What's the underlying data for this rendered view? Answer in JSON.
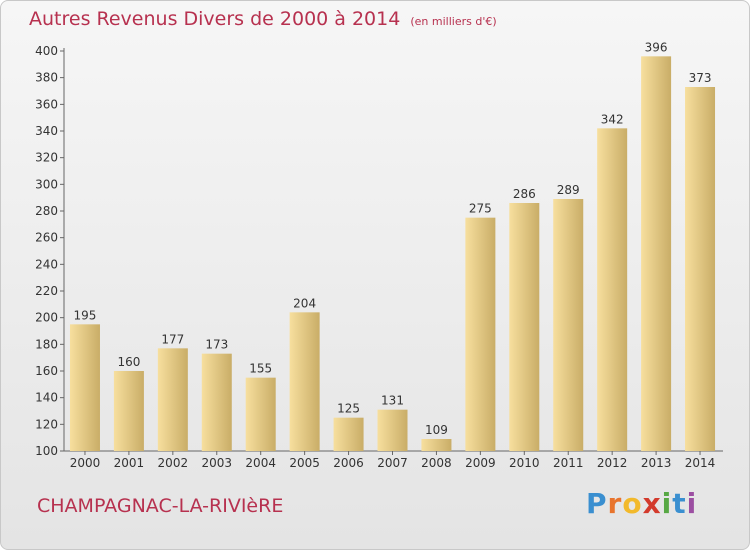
{
  "header": {
    "title": "Autres Revenus Divers de 2000 à 2014",
    "unit": "(en milliers d'€)"
  },
  "footer": {
    "commune": "CHAMPAGNAC-LA-RIVIèRE"
  },
  "logo": {
    "letters": [
      "P",
      "r",
      "o",
      "x",
      "i",
      "t",
      "i"
    ],
    "colors": [
      "#3a8fd0",
      "#e8742d",
      "#f2b92b",
      "#d33a2c",
      "#57a844",
      "#3a8fd0",
      "#9c4fa2"
    ]
  },
  "colors": {
    "title": "#b7314f",
    "bar_light": "#f7df9e",
    "bar_dark": "#c9ad67"
  },
  "chart_data": {
    "type": "bar",
    "title": "Autres Revenus Divers de 2000 à 2014",
    "xlabel": "",
    "ylabel": "",
    "ylim": [
      100,
      400
    ],
    "yticks": [
      100,
      120,
      140,
      160,
      180,
      200,
      220,
      240,
      260,
      280,
      300,
      320,
      340,
      360,
      380,
      400
    ],
    "grid": false,
    "categories": [
      "2000",
      "2001",
      "2002",
      "2003",
      "2004",
      "2005",
      "2006",
      "2007",
      "2008",
      "2009",
      "2010",
      "2011",
      "2012",
      "2013",
      "2014"
    ],
    "values": [
      195,
      160,
      177,
      173,
      155,
      204,
      125,
      131,
      109,
      275,
      286,
      289,
      342,
      396,
      373
    ]
  }
}
